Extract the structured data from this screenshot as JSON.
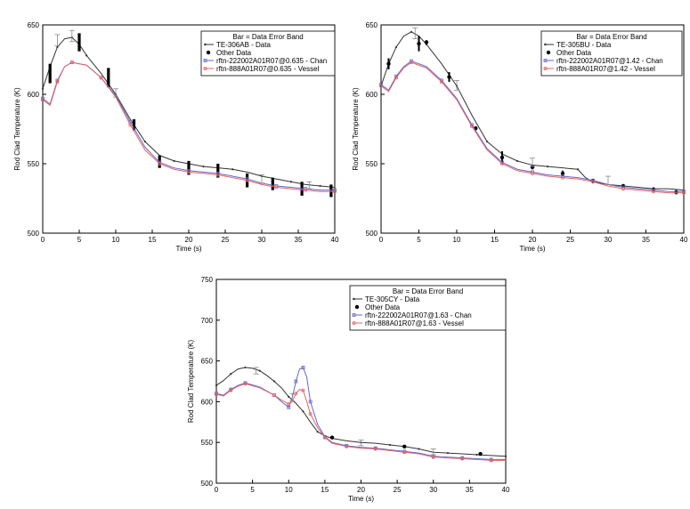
{
  "chart_data": [
    {
      "type": "line",
      "xlabel": "Time (s)",
      "ylabel": "Rod Clad Temperature (K)",
      "xlim": [
        0,
        40
      ],
      "ylim": [
        500,
        650
      ],
      "xticks": [
        0,
        5,
        10,
        15,
        20,
        25,
        30,
        35,
        40
      ],
      "yticks": [
        500,
        550,
        600,
        650
      ],
      "legend_position": "top-right",
      "legend_title": "Bar = Data Error Band",
      "series": [
        {
          "name": "TE-306AB - Data",
          "color": "#333333",
          "marker": "dot",
          "x": [
            0,
            1,
            2,
            3,
            4,
            5,
            6,
            8,
            10,
            12,
            14,
            16,
            18,
            20,
            22,
            24,
            26,
            28,
            30,
            32,
            34,
            36,
            38,
            40
          ],
          "y": [
            604,
            620,
            634,
            640,
            641,
            636,
            628,
            615,
            600,
            582,
            566,
            556,
            552,
            550,
            548,
            547,
            546,
            544,
            541,
            539,
            537,
            535,
            534,
            533
          ]
        },
        {
          "name": "Other Data",
          "color": "#000000",
          "marker": "bar",
          "x": [
            1,
            5,
            9,
            12.5,
            16,
            20,
            24,
            28,
            31.5,
            35.5,
            39.5
          ],
          "ylow": [
            608,
            631,
            605,
            574,
            547,
            542,
            540,
            533,
            531,
            527,
            526
          ],
          "yhigh": [
            622,
            644,
            619,
            582,
            556,
            552,
            550,
            543,
            540,
            537,
            535
          ]
        },
        {
          "name": "rftn-222002A01R07@0.635 - Chan",
          "color": "#6666cc",
          "marker": "square",
          "x": [
            0,
            1,
            2,
            3,
            4,
            6,
            8,
            10,
            12,
            14,
            16,
            18,
            20,
            22,
            24,
            26,
            28,
            30,
            32,
            34,
            36,
            38,
            40
          ],
          "y": [
            597,
            593,
            610,
            620,
            623,
            621,
            612,
            599,
            580,
            562,
            551,
            547,
            545,
            544,
            543,
            541,
            539,
            536,
            534,
            533,
            532,
            531,
            531
          ]
        },
        {
          "name": "rftn-888A01R07@0.635 - Vessel",
          "color": "#e06666",
          "marker": "circle",
          "x": [
            0,
            1,
            2,
            3,
            4,
            6,
            8,
            10,
            12,
            14,
            16,
            18,
            20,
            22,
            24,
            26,
            28,
            30,
            32,
            34,
            36,
            38,
            40
          ],
          "y": [
            596,
            592,
            609,
            620,
            623,
            621,
            612,
            598,
            578,
            560,
            550,
            546,
            544,
            543,
            542,
            540,
            538,
            535,
            533,
            532,
            531,
            530,
            530
          ]
        }
      ],
      "error_bands": [
        {
          "x": 2,
          "low": 635,
          "high": 643
        },
        {
          "x": 4,
          "low": 638,
          "high": 646
        },
        {
          "x": 10,
          "low": 598,
          "high": 604
        },
        {
          "x": 30,
          "low": 536,
          "high": 542
        },
        {
          "x": 36.5,
          "low": 532,
          "high": 537
        }
      ]
    },
    {
      "type": "line",
      "xlabel": "Time (s)",
      "ylabel": "Rod Clad Temperature (K)",
      "xlim": [
        0,
        40
      ],
      "ylim": [
        500,
        650
      ],
      "xticks": [
        0,
        5,
        10,
        15,
        20,
        25,
        30,
        35,
        40
      ],
      "yticks": [
        500,
        550,
        600,
        650
      ],
      "legend_position": "top-right",
      "legend_title": "Bar = Data Error Band",
      "series": [
        {
          "name": "TE-305BU - Data",
          "color": "#333333",
          "marker": "dot",
          "x": [
            0,
            1,
            2,
            3,
            4,
            5,
            6,
            8,
            10,
            12,
            14,
            16,
            18,
            20,
            22,
            24,
            26,
            27,
            28,
            30,
            32,
            34,
            36,
            38,
            40
          ],
          "y": [
            606,
            622,
            634,
            642,
            645,
            642,
            636,
            622,
            606,
            585,
            566,
            557,
            552,
            549,
            548,
            547,
            546,
            540,
            537,
            535,
            534,
            533,
            532,
            532,
            531
          ]
        },
        {
          "name": "Other Data",
          "color": "#000000",
          "marker": "dot-bar",
          "x": [
            1,
            5,
            6,
            9,
            12.5,
            16,
            20,
            24,
            28,
            32,
            36,
            39
          ],
          "ylow": [
            618,
            631,
            636,
            609,
            574,
            550,
            546,
            541,
            536,
            533,
            530,
            528
          ],
          "yhigh": [
            626,
            642,
            639,
            616,
            577,
            559,
            549,
            545,
            539,
            535,
            533,
            531
          ]
        },
        {
          "name": "rftn-222002A01R07@1.42 - Chan",
          "color": "#6666cc",
          "marker": "square",
          "x": [
            0,
            1,
            2,
            3,
            4,
            6,
            8,
            10,
            12,
            14,
            16,
            18,
            20,
            22,
            24,
            26,
            28,
            30,
            32,
            34,
            36,
            38,
            40
          ],
          "y": [
            607,
            603,
            613,
            620,
            624,
            620,
            610,
            597,
            578,
            561,
            551,
            546,
            544,
            542,
            541,
            540,
            538,
            535,
            533,
            532,
            531,
            530,
            530
          ]
        },
        {
          "name": "rftn-888A01R07@1.42 - Vessel",
          "color": "#e06666",
          "marker": "circle",
          "x": [
            0,
            1,
            2,
            3,
            4,
            6,
            8,
            10,
            12,
            14,
            16,
            18,
            20,
            22,
            24,
            26,
            28,
            30,
            32,
            34,
            36,
            38,
            40
          ],
          "y": [
            606,
            602,
            612,
            619,
            623,
            619,
            609,
            596,
            577,
            560,
            550,
            545,
            543,
            541,
            540,
            539,
            537,
            534,
            532,
            531,
            530,
            529,
            529
          ]
        }
      ],
      "error_bands": [
        {
          "x": 4.5,
          "low": 640,
          "high": 648
        },
        {
          "x": 10,
          "low": 603,
          "high": 610
        },
        {
          "x": 20,
          "low": 548,
          "high": 554
        },
        {
          "x": 30,
          "low": 535,
          "high": 541
        }
      ]
    },
    {
      "type": "line",
      "xlabel": "Time (s)",
      "ylabel": "Rod Clad Temperature (K)",
      "xlim": [
        0,
        40
      ],
      "ylim": [
        500,
        750
      ],
      "xticks": [
        0,
        5,
        10,
        15,
        20,
        25,
        30,
        35,
        40
      ],
      "yticks": [
        500,
        550,
        600,
        650,
        700,
        750
      ],
      "legend_position": "top-right",
      "legend_title": "Bar = Data Error Band",
      "series": [
        {
          "name": "TE-305CY - Data",
          "color": "#333333",
          "marker": "dot",
          "x": [
            0,
            1,
            2,
            3,
            4,
            5,
            6,
            7,
            8,
            9,
            10,
            11,
            12,
            13,
            14,
            15,
            16,
            18,
            20,
            22,
            24,
            26,
            28,
            30,
            32,
            34,
            36,
            38,
            40
          ],
          "y": [
            620,
            626,
            634,
            640,
            642,
            641,
            638,
            632,
            625,
            617,
            606,
            598,
            588,
            575,
            563,
            558,
            555,
            552,
            550,
            549,
            547,
            545,
            542,
            538,
            537,
            536,
            535,
            534,
            533
          ]
        },
        {
          "name": "Other Data",
          "color": "#000000",
          "marker": "dot",
          "x": [
            16,
            26,
            36.5
          ],
          "ylow": [
            554,
            543,
            534
          ],
          "yhigh": [
            558,
            547,
            538
          ]
        },
        {
          "name": "rftn-222002A01R07@1.63 - Chan",
          "color": "#6666cc",
          "marker": "square",
          "x": [
            0,
            1,
            2,
            3,
            4,
            6,
            8,
            9,
            10,
            10.5,
            11,
            11.5,
            12,
            12.5,
            13,
            14,
            15,
            16,
            18,
            20,
            22,
            24,
            26,
            28,
            30,
            32,
            34,
            36,
            38,
            40
          ],
          "y": [
            610,
            608,
            615,
            620,
            623,
            618,
            608,
            600,
            593,
            605,
            625,
            640,
            642,
            630,
            600,
            572,
            557,
            550,
            546,
            544,
            543,
            541,
            539,
            537,
            533,
            532,
            531,
            530,
            529,
            529
          ]
        },
        {
          "name": "rftn-888A01R07@1.63 - Vessel",
          "color": "#e06666",
          "marker": "circle",
          "x": [
            0,
            1,
            2,
            3,
            4,
            6,
            8,
            9,
            10,
            10.5,
            11,
            11.5,
            12,
            12.5,
            13,
            14,
            15,
            16,
            18,
            20,
            22,
            24,
            26,
            28,
            30,
            32,
            34,
            36,
            38,
            40
          ],
          "y": [
            609,
            607,
            614,
            619,
            622,
            617,
            608,
            602,
            597,
            600,
            610,
            615,
            614,
            600,
            585,
            568,
            556,
            549,
            545,
            543,
            542,
            540,
            538,
            536,
            532,
            531,
            530,
            529,
            528,
            528
          ]
        }
      ],
      "error_bands": [
        {
          "x": 5.5,
          "low": 634,
          "high": 642
        },
        {
          "x": 10.5,
          "low": 601,
          "high": 610
        },
        {
          "x": 20,
          "low": 546,
          "high": 553
        },
        {
          "x": 30,
          "low": 535,
          "high": 542
        }
      ]
    }
  ]
}
